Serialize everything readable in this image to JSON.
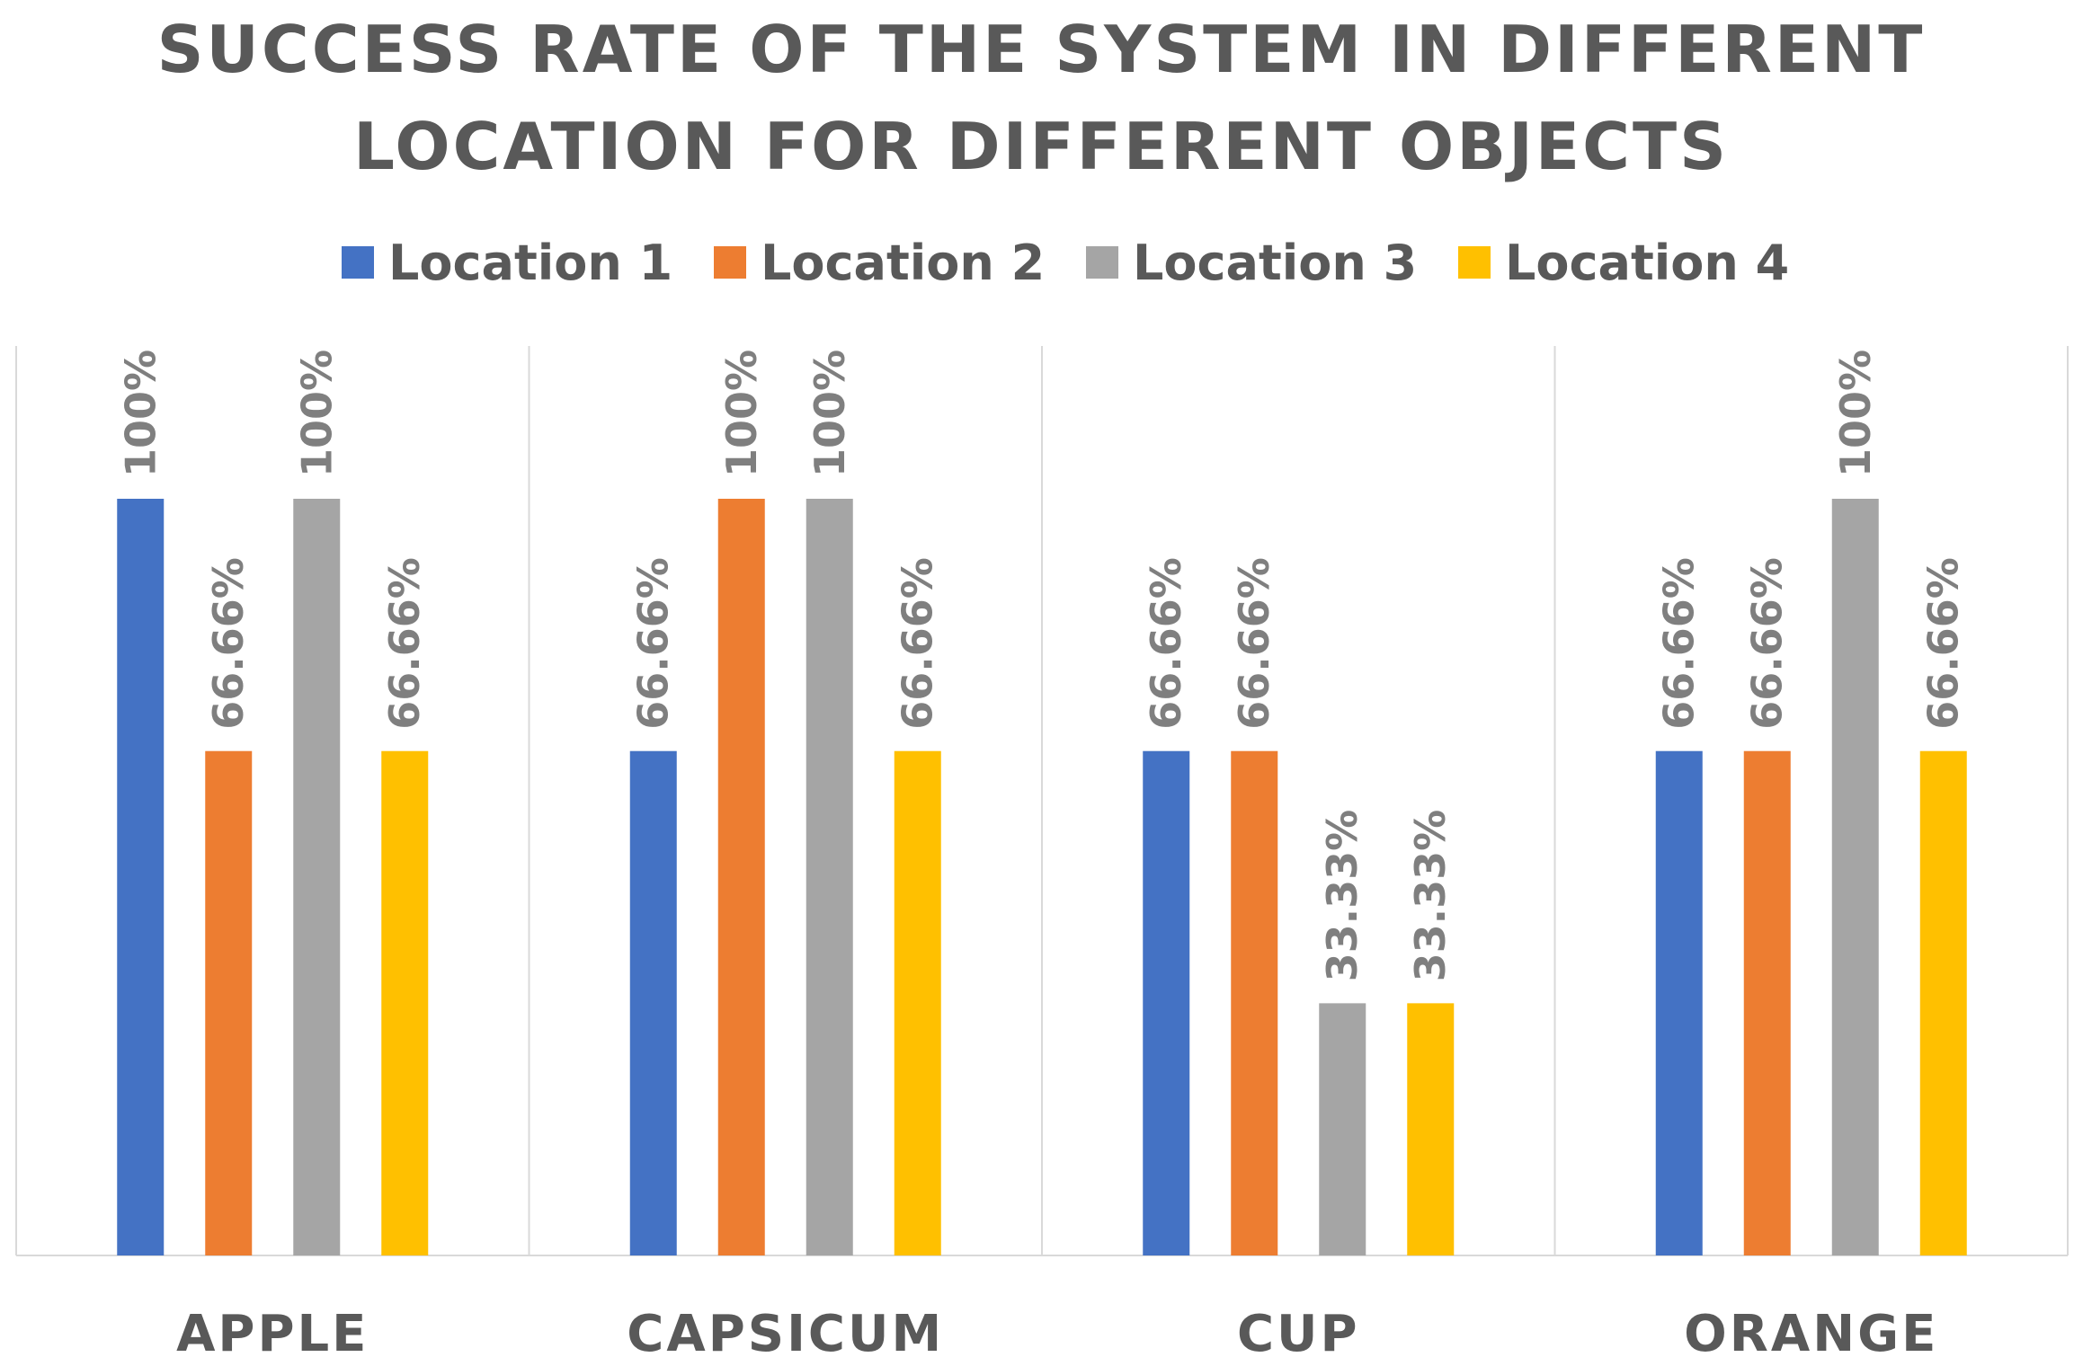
{
  "colors": {
    "series": [
      "#4472C4",
      "#ED7D31",
      "#A5A5A5",
      "#FFC000"
    ],
    "gridline": "#d9d9d9",
    "text": "#595959",
    "data_label": "#7f7f7f"
  },
  "chart_data": {
    "type": "bar",
    "title_lines": [
      "SUCCESS RATE OF THE SYSTEM IN DIFFERENT",
      "LOCATION FOR DIFFERENT OBJECTS"
    ],
    "categories": [
      "APPLE",
      "CAPSICUM",
      "CUP",
      "ORANGE"
    ],
    "series": [
      {
        "name": "Location 1",
        "values": [
          100,
          66.66,
          66.66,
          66.66
        ],
        "labels": [
          "100%",
          "66.66%",
          "66.66%",
          "66.66%"
        ]
      },
      {
        "name": "Location 2",
        "values": [
          66.66,
          100,
          66.66,
          66.66
        ],
        "labels": [
          "66.66%",
          "100%",
          "66.66%",
          "66.66%"
        ]
      },
      {
        "name": "Location 3",
        "values": [
          100,
          100,
          33.33,
          100
        ],
        "labels": [
          "100%",
          "100%",
          "33.33%",
          "100%"
        ]
      },
      {
        "name": "Location 4",
        "values": [
          66.66,
          66.66,
          33.33,
          66.66
        ],
        "labels": [
          "66.66%",
          "66.66%",
          "33.33%",
          "66.66%"
        ]
      }
    ],
    "ylim": [
      0,
      100
    ],
    "xlabel": "",
    "ylabel": "",
    "legend_position": "top",
    "grid": "vertical category separators",
    "data_labels": "rotated, above bars"
  }
}
